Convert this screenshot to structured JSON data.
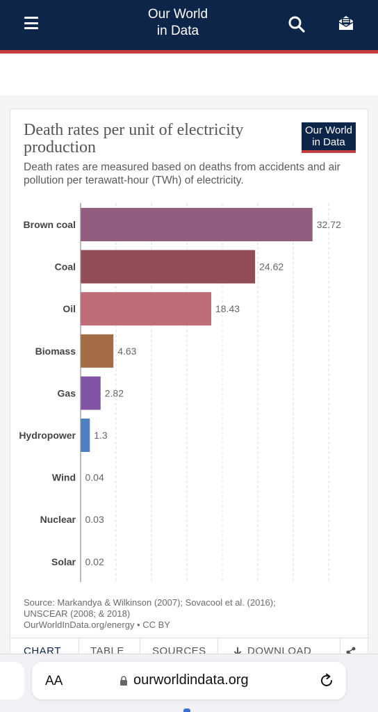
{
  "header": {
    "logo_line1": "Our World",
    "logo_line2": "in Data",
    "menu_icon": "hamburger-menu-icon",
    "search_icon": "search-icon",
    "newsletter_icon": "envelope-icon"
  },
  "card": {
    "title": "Death rates per unit of electricity production",
    "badge_line1": "Our World",
    "badge_line2": "in Data",
    "subtitle": "Death rates are measured based on deaths from accidents and air pollution per terawatt-hour (TWh) of electricity.",
    "source_line1": "Source: Markandya & Wilkinson (2007); Sovacool et al. (2016);",
    "source_line2": "UNSCEAR (2008; & 2018)",
    "source_line3": "OurWorldInData.org/energy • CC BY",
    "tabs": {
      "chart": "CHART",
      "table": "TABLE",
      "sources": "SOURCES",
      "download": "DOWNLOAD",
      "share_icon": "share-icon"
    }
  },
  "chart_data": {
    "type": "bar",
    "orientation": "horizontal",
    "title": "Death rates per unit of electricity production",
    "subtitle": "Death rates are measured based on deaths from accidents and air pollution per terawatt-hour (TWh) of electricity.",
    "categories": [
      "Brown coal",
      "Coal",
      "Oil",
      "Biomass",
      "Gas",
      "Hydropower",
      "Wind",
      "Nuclear",
      "Solar"
    ],
    "values": [
      32.72,
      24.62,
      18.43,
      4.63,
      2.82,
      1.3,
      0.04,
      0.03,
      0.02
    ],
    "value_labels": [
      "32.72",
      "24.62",
      "18.43",
      "4.63",
      "2.82",
      "1.3",
      "0.04",
      "0.03",
      "0.02"
    ],
    "colors": [
      "#925d7e",
      "#924e56",
      "#c06b78",
      "#a46c46",
      "#8254a5",
      "#4d7fc2",
      "#999999",
      "#999999",
      "#999999"
    ],
    "xlim": [
      0,
      35
    ],
    "grid": true,
    "xlabel": "",
    "ylabel": ""
  },
  "browser": {
    "aa_label": "AA",
    "url": "ourworldindata.org",
    "lock_icon": "lock-icon",
    "reload_icon": "reload-icon"
  }
}
